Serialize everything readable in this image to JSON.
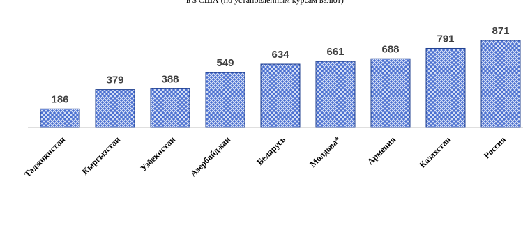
{
  "header": {
    "subtitle": "в $ США (по установленным курсам валют)"
  },
  "colors": {
    "bar_fill": "#4a6fd0",
    "bar_pattern_light": "#dfe7f8",
    "bar_border": "#1f3f8f",
    "axis": "#bfbfbf",
    "value_label": "#404040"
  },
  "chart_data": {
    "type": "bar",
    "title": "",
    "xlabel": "",
    "ylabel": "",
    "categories": [
      "Таджикистан",
      "Кыргызстан",
      "Узбекистан",
      "Азербайджан",
      "Беларусь",
      "Молдова*",
      "Армения",
      "Казахстан",
      "Россия"
    ],
    "values": [
      186,
      379,
      388,
      549,
      634,
      661,
      688,
      791,
      871
    ],
    "ylim": [
      0,
      900
    ],
    "data_labels": true,
    "grid": false,
    "legend": "none",
    "bar_pattern": "diamond-lattice"
  }
}
